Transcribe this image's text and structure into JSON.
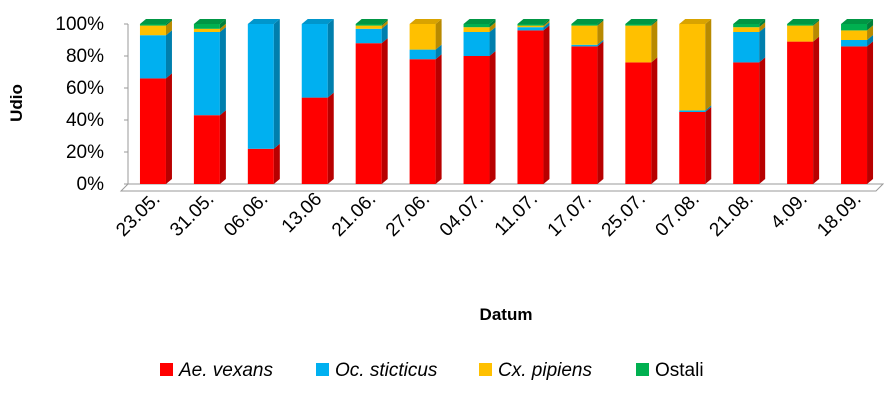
{
  "chart_data": {
    "type": "bar",
    "stacked": true,
    "percent": true,
    "categories": [
      "23.05.",
      "31.05.",
      "06.06.",
      "13.06",
      "21.06.",
      "27.06.",
      "04.07.",
      "11.07.",
      "17.07.",
      "25.07.",
      "07.08.",
      "21.08.",
      "4.09.",
      "18.09."
    ],
    "series": [
      {
        "name": "Ae. vexans",
        "italic": true,
        "color": "#ff0000",
        "values": [
          66,
          43,
          22,
          54,
          88,
          78,
          80,
          96,
          86,
          76,
          45,
          76,
          89,
          86
        ]
      },
      {
        "name": "Oc. sticticus",
        "italic": true,
        "color": "#00b0f0",
        "values": [
          27,
          52,
          78,
          46,
          9,
          6,
          15,
          2,
          1,
          0,
          1,
          19,
          0,
          4
        ]
      },
      {
        "name": "Cx. pipiens",
        "italic": true,
        "color": "#ffc000",
        "values": [
          6,
          2,
          0,
          0,
          2,
          16,
          3,
          1,
          12,
          23,
          54,
          3,
          10,
          6
        ]
      },
      {
        "name": "Ostali",
        "italic": false,
        "color": "#00b050",
        "values": [
          1,
          3,
          0,
          0,
          1,
          0,
          2,
          1,
          1,
          1,
          0,
          2,
          1,
          4
        ]
      }
    ],
    "yticks": [
      "0%",
      "20%",
      "40%",
      "60%",
      "80%",
      "100%"
    ],
    "ylim": [
      0,
      100
    ],
    "xlabel": "Datum",
    "ylabel": "Udio",
    "legend_position": "bottom",
    "grid": false
  }
}
